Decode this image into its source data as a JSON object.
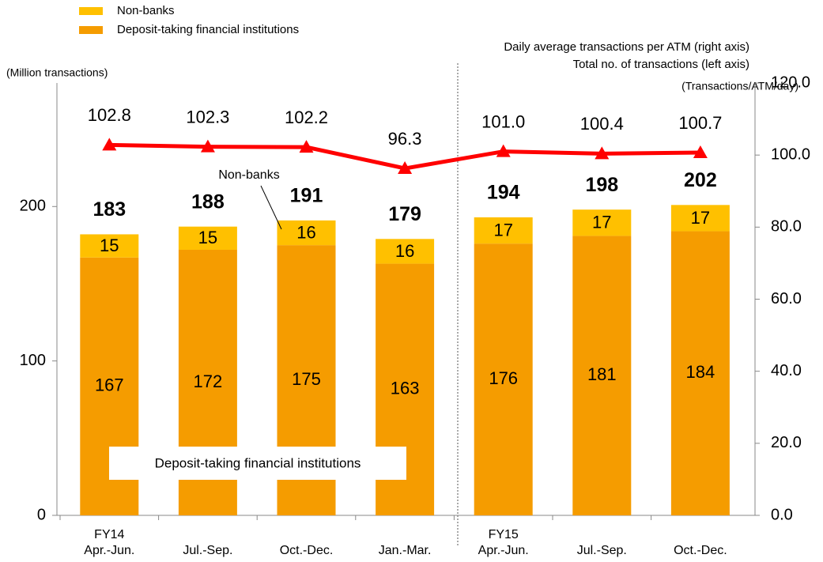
{
  "chart_data": {
    "type": "bar",
    "stacked": true,
    "categories": [
      "Apr.-Jun.",
      "Jul.-Sep.",
      "Oct.-Dec.",
      "Jan.-Mar.",
      "Apr.-Jun.",
      "Jul.-Sep.",
      "Oct.-Dec."
    ],
    "category_groups": [
      "FY14",
      null,
      null,
      null,
      "FY15",
      null,
      null
    ],
    "series": [
      {
        "name": "Deposit-taking financial institutions",
        "color": "#f59c00",
        "values": [
          167,
          172,
          175,
          163,
          176,
          181,
          184
        ]
      },
      {
        "name": "Non-banks",
        "color": "#ffc000",
        "values": [
          15,
          15,
          16,
          16,
          17,
          17,
          17
        ]
      },
      {
        "name": "Daily average transactions per ATM (right axis)",
        "type": "line",
        "axis": "y2",
        "color": "#ff0000",
        "values": [
          102.8,
          102.3,
          102.2,
          96.3,
          101.0,
          100.4,
          100.7
        ],
        "value_labels": [
          "102.8",
          "102.3",
          "102.2",
          "96.3",
          "101.0",
          "100.4",
          "100.7"
        ]
      }
    ],
    "totals_name": "Total no. of transactions (left axis)",
    "totals": [
      183,
      188,
      191,
      179,
      194,
      198,
      202
    ],
    "ylabel": "(Million transactions)",
    "y2label": "(Transactions/ATM/day)",
    "ylim": [
      0,
      280
    ],
    "yticks": [
      0,
      100,
      200
    ],
    "y2lim": [
      0,
      120
    ],
    "y2ticks": [
      {
        "value": 0,
        "label": "0.0"
      },
      {
        "value": 20,
        "label": "20.0"
      },
      {
        "value": 40,
        "label": "40.0"
      },
      {
        "value": 60,
        "label": "60.0"
      },
      {
        "value": 80,
        "label": "80.0"
      },
      {
        "value": 100,
        "label": "100.0"
      },
      {
        "value": 120,
        "label": "120.0"
      }
    ],
    "annotations": [
      "Non-banks",
      "Deposit-taking financial institutions"
    ]
  }
}
